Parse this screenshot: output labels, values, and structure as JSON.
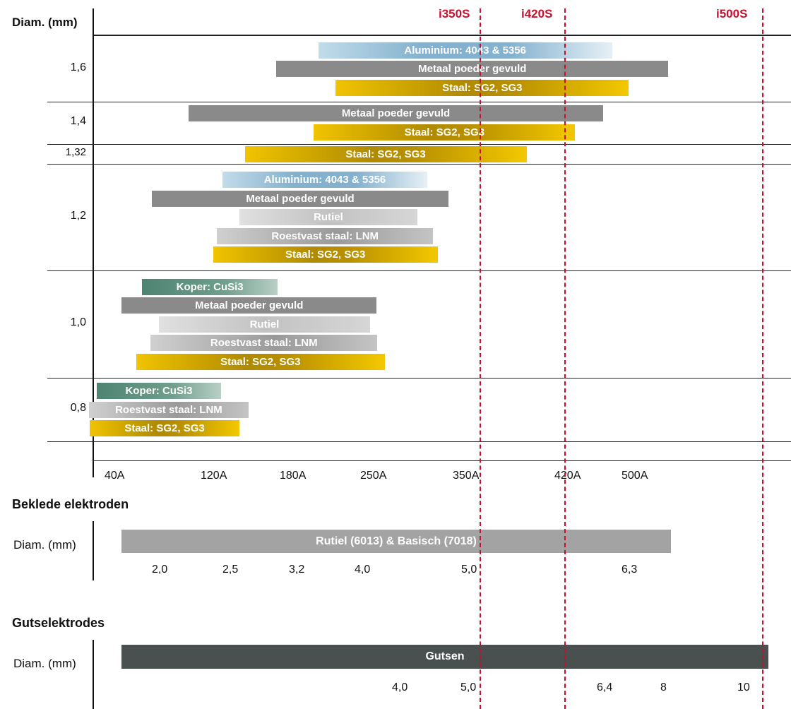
{
  "colors": {
    "aluminium": "#8fb8d2",
    "metaal": "#8a8a8a",
    "staal": "#c9a100",
    "rutiel": "#c8c8c8",
    "roestvast": "#a8a8a8",
    "koper": "#4e8472",
    "rutiel_basisch": "#a3a3a3",
    "gutsen": "#4a4f4f",
    "machine_line": "#c8102e"
  },
  "header": {
    "diam_label": "Diam. (mm)"
  },
  "machines": [
    "i350S",
    "i420S",
    "i500S"
  ],
  "chart_data": {
    "type": "bar",
    "diameter_axis_label": "Diam. (mm)",
    "current_ticks": [
      "40A",
      "120A",
      "180A",
      "250A",
      "350A",
      "420A",
      "500A"
    ],
    "groups": [
      {
        "diameter": "1,6",
        "bars": [
          {
            "label": "Aluminium: 4043 & 5356",
            "material": "aluminium",
            "from_A": 205,
            "to_A": 477
          },
          {
            "label": "Metaal poeder gevuld",
            "material": "metaal",
            "from_A": 170,
            "to_A": 516
          },
          {
            "label": "Staal: SG2, SG3",
            "material": "staal",
            "from_A": 220,
            "to_A": 497
          }
        ]
      },
      {
        "diameter": "1,4",
        "bars": [
          {
            "label": "Metaal poeder gevuld",
            "material": "metaal",
            "from_A": 102,
            "to_A": 466
          },
          {
            "label": "Staal: SG2, SG3",
            "material": "staal",
            "from_A": 201,
            "to_A": 433
          }
        ]
      },
      {
        "diameter": "1,32",
        "bars": [
          {
            "label": "Staal: SG2, SG3",
            "material": "staal",
            "from_A": 146,
            "to_A": 394
          }
        ]
      },
      {
        "diameter": "1,2",
        "bars": [
          {
            "label": "Aluminium: 4043 & 5356",
            "material": "aluminium",
            "from_A": 129,
            "to_A": 312
          },
          {
            "label": "Metaal poeder gevuld",
            "material": "metaal",
            "from_A": 71,
            "to_A": 335
          },
          {
            "label": "Rutiel",
            "material": "rutiel",
            "from_A": 142,
            "to_A": 301
          },
          {
            "label": "Roestvast staal: LNM",
            "material": "roestvast",
            "from_A": 125,
            "to_A": 318
          },
          {
            "label": "Staal: SG2, SG3",
            "material": "staal",
            "from_A": 122,
            "to_A": 323
          }
        ]
      },
      {
        "diameter": "1,0",
        "bars": [
          {
            "label": "Koper: CuSi3",
            "material": "koper",
            "from_A": 63,
            "to_A": 171
          },
          {
            "label": "Metaal poeder gevuld",
            "material": "metaal",
            "from_A": 46,
            "to_A": 257
          },
          {
            "label": "Rutiel",
            "material": "rutiel",
            "from_A": 77,
            "to_A": 250
          },
          {
            "label": "Roestvast staal: LNM",
            "material": "roestvast",
            "from_A": 70,
            "to_A": 258
          },
          {
            "label": "Staal: SG2, SG3",
            "material": "staal",
            "from_A": 58,
            "to_A": 266
          }
        ]
      },
      {
        "diameter": "0,8",
        "bars": [
          {
            "label": "Koper: CuSi3",
            "material": "koper",
            "from_A": 20,
            "to_A": 128
          },
          {
            "label": "Roestvast staal: LNM",
            "material": "roestvast",
            "from_A": 11,
            "to_A": 149
          },
          {
            "label": "Staal: SG2, SG3",
            "material": "staal",
            "from_A": 12,
            "to_A": 142
          }
        ]
      }
    ]
  },
  "electrodes": {
    "title": "Beklede elektroden",
    "diam_label": "Diam. (mm)",
    "bar_label": "Rutiel (6013) & Basisch (7018)",
    "diameters": [
      "2,0",
      "2,5",
      "3,2",
      "4,0",
      "5,0",
      "6,3"
    ]
  },
  "gouging": {
    "title": "Gutselektrodes",
    "diam_label": "Diam. (mm)",
    "bar_label": "Gutsen",
    "diameters": [
      "4,0",
      "5,0",
      "6,4",
      "8",
      "10"
    ]
  }
}
